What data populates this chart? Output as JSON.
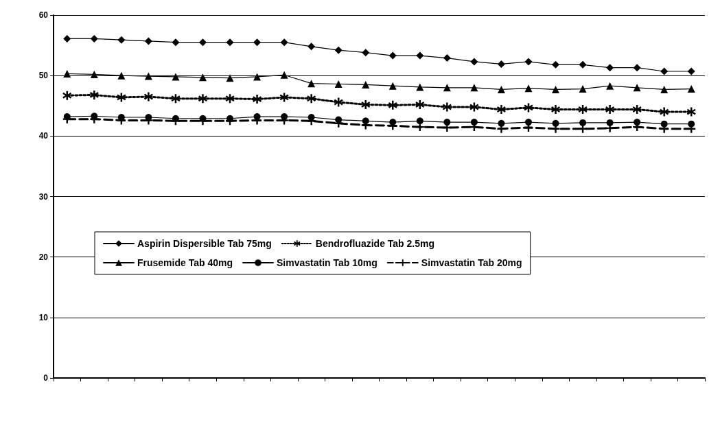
{
  "chart_data": {
    "type": "line",
    "categories": [
      null,
      null,
      null,
      null,
      null,
      null,
      null,
      null,
      null,
      null,
      null,
      null,
      null,
      null,
      null,
      null,
      null,
      null,
      null,
      null,
      null,
      null,
      null,
      null
    ],
    "series": [
      {
        "name": "Aspirin Dispersible Tab 75mg",
        "color": "#000000",
        "marker": "diamond",
        "line_style": "solid",
        "values": [
          56.1,
          56.1,
          55.9,
          55.7,
          55.5,
          55.5,
          55.5,
          55.5,
          55.5,
          54.8,
          54.2,
          53.8,
          53.3,
          53.3,
          52.9,
          52.3,
          51.9,
          52.3,
          51.8,
          51.8,
          51.3,
          51.3,
          50.7,
          50.7
        ]
      },
      {
        "name": "Bendrofluazide Tab 2.5mg",
        "color": "#000000",
        "marker": "star",
        "line_style": "dotted",
        "values": [
          46.7,
          46.8,
          46.4,
          46.5,
          46.2,
          46.2,
          46.2,
          46.1,
          46.4,
          46.2,
          45.6,
          45.2,
          45.1,
          45.2,
          44.8,
          44.8,
          44.4,
          44.7,
          44.4,
          44.4,
          44.4,
          44.4,
          44.0,
          44.0
        ]
      },
      {
        "name": "Frusemide Tab 40mg",
        "color": "#000000",
        "marker": "triangle",
        "line_style": "solid",
        "values": [
          50.3,
          50.2,
          50.0,
          49.9,
          49.8,
          49.7,
          49.6,
          49.8,
          50.1,
          48.7,
          48.6,
          48.5,
          48.3,
          48.1,
          48.0,
          48.0,
          47.7,
          47.9,
          47.7,
          47.8,
          48.3,
          48.0,
          47.7,
          47.8
        ]
      },
      {
        "name": "Simvastatin Tab 10mg",
        "color": "#000000",
        "marker": "circle",
        "line_style": "solid",
        "values": [
          43.2,
          43.3,
          43.1,
          43.1,
          42.9,
          42.9,
          42.9,
          43.2,
          43.2,
          43.1,
          42.7,
          42.5,
          42.3,
          42.5,
          42.3,
          42.3,
          42.1,
          42.3,
          42.1,
          42.2,
          42.2,
          42.3,
          42.0,
          42.0
        ]
      },
      {
        "name": "Simvastatin Tab 20mg",
        "color": "#000000",
        "marker": "cross",
        "line_style": "dashed",
        "values": [
          42.8,
          42.8,
          42.6,
          42.6,
          42.5,
          42.5,
          42.5,
          42.6,
          42.6,
          42.5,
          42.1,
          41.8,
          41.7,
          41.5,
          41.4,
          41.5,
          41.2,
          41.4,
          41.2,
          41.2,
          41.3,
          41.5,
          41.2,
          41.2
        ]
      }
    ],
    "ylim": [
      0,
      60
    ],
    "yticks": [
      0,
      10,
      20,
      30,
      40,
      50,
      60
    ],
    "grid": "y",
    "legend": "left"
  }
}
